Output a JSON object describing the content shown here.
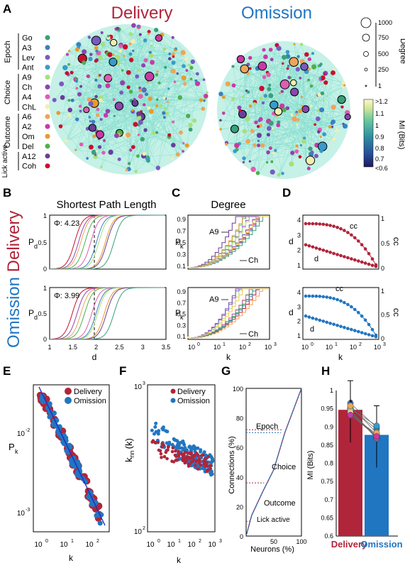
{
  "panel_letters": [
    "A",
    "B",
    "C",
    "D",
    "E",
    "F",
    "G",
    "H"
  ],
  "colors": {
    "delivery": "#b0253a",
    "omission": "#2176c1",
    "teal": "#5ad2c4",
    "fit": "#1a2fc9"
  },
  "panelA": {
    "delivery_title": "Delivery",
    "omission_title": "Omission",
    "groups": [
      "Epoch",
      "Choice",
      "Outcome",
      "Lick active"
    ],
    "legend": [
      {
        "label": "Go",
        "color": "#3aa07a"
      },
      {
        "label": "A3",
        "color": "#3a7fc1"
      },
      {
        "label": "Lev",
        "color": "#7a5ac0"
      },
      {
        "label": "Ant",
        "color": "#3a9ac9"
      },
      {
        "label": "A9",
        "color": "#a6e07a"
      },
      {
        "label": "Ch",
        "color": "#8e44ad"
      },
      {
        "label": "A4",
        "color": "#e05cb0"
      },
      {
        "label": "ChL",
        "color": "#f2eeb0"
      },
      {
        "label": "A6",
        "color": "#f0a35a"
      },
      {
        "label": "A2",
        "color": "#c83aa6"
      },
      {
        "label": "Om",
        "color": "#e89b2c"
      },
      {
        "label": "Del",
        "color": "#4db04f"
      },
      {
        "label": "A12",
        "color": "#6a3d9a"
      },
      {
        "label": "Coh",
        "color": "#c8102e"
      }
    ],
    "degree_title": "Degree",
    "degree_ticks": [
      "1000",
      "750",
      "500",
      "250",
      "1"
    ],
    "mi_title": "MI (Bits)",
    "mi_ticks": [
      ">1.2",
      "1.1",
      "1",
      "0.9",
      "0.8",
      "0.7",
      "<0.6"
    ]
  },
  "side_labels": {
    "delivery": "Delivery",
    "omission": "Omission"
  },
  "panelB": {
    "title": "Shortest Path Length",
    "ylabel": "P",
    "ysub": "d",
    "xlabel": "d",
    "phi_delivery": "Φ: 4.23",
    "phi_omission": "Φ: 3.99",
    "xticks": [
      "1",
      "1.5",
      "2",
      "2.5",
      "3",
      "3.5"
    ],
    "yticks": [
      "0",
      "0.5",
      "1"
    ]
  },
  "panelC": {
    "title": "Degree",
    "ylabel": "P",
    "ysub": "k",
    "xlabel": "k",
    "yticks": [
      "0.9",
      "0.7",
      "0.5",
      "0.3",
      "0.1"
    ],
    "xticks": [
      "10",
      "10",
      "10",
      "10"
    ],
    "xexp": [
      "0",
      "1",
      "2",
      "3"
    ],
    "ann_a9": "A9",
    "ann_ch": "Ch"
  },
  "panelD": {
    "ylabel": "d",
    "y2label": "cc",
    "xlabel": "k",
    "ann_cc": "cc",
    "ann_d": "d",
    "yticks": [
      "4",
      "3",
      "2",
      "1"
    ],
    "y2ticks": [
      "1",
      "0.5",
      "0"
    ],
    "xexp": [
      "0",
      "1",
      "2",
      "3"
    ]
  },
  "panelE": {
    "ylabel": "P",
    "ysub": "k",
    "xlabel": "k",
    "legend": [
      "Delivery",
      "Omission"
    ],
    "yexp": [
      "-2",
      "-3"
    ],
    "xexp": [
      "0",
      "1",
      "2"
    ]
  },
  "panelF": {
    "ylabel": "k",
    "ysub": "nn",
    "yarg": "(k)",
    "xlabel": "k",
    "legend": [
      "Delivery",
      "Omission"
    ],
    "yexp": [
      "3",
      "2"
    ],
    "xexp": [
      "0",
      "1",
      "2",
      "3"
    ]
  },
  "panelG": {
    "ylabel": "Connections (%)",
    "xlabel": "Neurons (%)",
    "annotations": [
      "Epoch",
      "Choice",
      "Outcome",
      "Lick active"
    ],
    "yticks": [
      "100",
      "80",
      "60",
      "40",
      "20",
      "0"
    ],
    "xticks": [
      "50",
      "100"
    ]
  },
  "panelH": {
    "ylabel": "MI (Bits)",
    "star": "*",
    "categories": [
      "Delivery",
      "Omission"
    ],
    "yticks": [
      "1",
      "0.95",
      "0.9",
      "0.85",
      "0.8",
      "0.75",
      "0.7",
      "0.65",
      "0.6"
    ]
  },
  "chart_data": [
    {
      "type": "bar",
      "categories": [
        "Delivery",
        "Omission"
      ],
      "values": [
        0.947,
        0.878
      ],
      "ylabel": "MI (Bits)",
      "ylim": [
        0.6,
        1.0
      ]
    },
    {
      "type": "line",
      "x": [
        0,
        10,
        30,
        50,
        70,
        90,
        100
      ],
      "y": [
        0,
        14,
        30,
        45,
        70,
        90,
        100
      ],
      "xlabel": "Neurons (%)",
      "ylabel": "Connections (%)"
    }
  ]
}
